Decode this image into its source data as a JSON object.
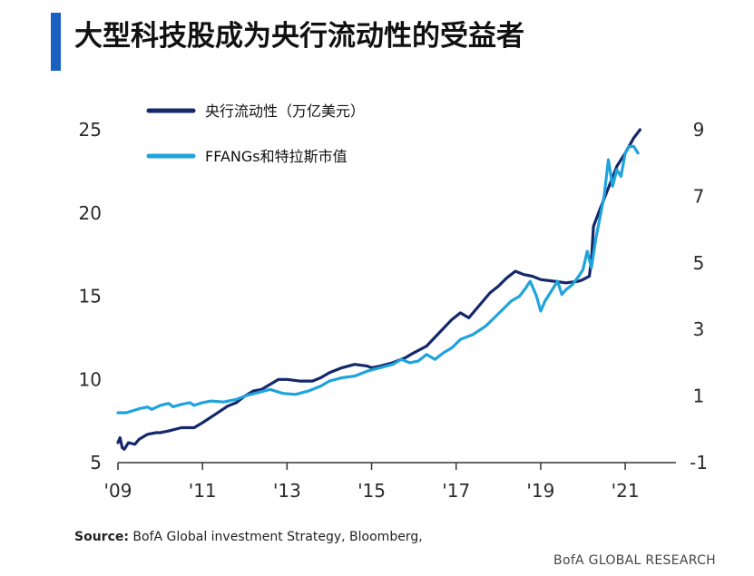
{
  "title": "大型科技股成为央行流动性的受益者",
  "colors": {
    "accent_bar": "#1b5fc1",
    "series_dark": "#14286b",
    "series_light": "#1fa3dd",
    "axis": "#333333"
  },
  "source": {
    "label": "Source:",
    "text": "BofA Global investment Strategy, Bloomberg,"
  },
  "brand": "BofA GLOBAL RESEARCH",
  "chart_data": {
    "type": "line",
    "title": "大型科技股成为央行流动性的受益者",
    "x_ticks": [
      "'09",
      "'11",
      "'13",
      "'15",
      "'17",
      "'19",
      "'21"
    ],
    "xlim": [
      2009,
      2022.2
    ],
    "left_axis": {
      "ticks": [
        "5",
        "10",
        "15",
        "20",
        "25"
      ],
      "ylim": [
        5,
        28
      ]
    },
    "right_axis": {
      "ticks": [
        "-1",
        "1",
        "3",
        "5",
        "7",
        "9"
      ],
      "ylim": [
        -1,
        10.5
      ]
    },
    "legend_position": "top-left",
    "grid": false,
    "series": [
      {
        "name": "央行流动性（万亿美元）",
        "axis": "left",
        "color": "#14286b",
        "points": [
          [
            2009.0,
            6.2
          ],
          [
            2009.05,
            6.5
          ],
          [
            2009.1,
            5.9
          ],
          [
            2009.15,
            5.8
          ],
          [
            2009.25,
            6.2
          ],
          [
            2009.4,
            6.1
          ],
          [
            2009.5,
            6.4
          ],
          [
            2009.7,
            6.7
          ],
          [
            2009.9,
            6.8
          ],
          [
            2010.0,
            6.8
          ],
          [
            2010.2,
            6.9
          ],
          [
            2010.5,
            7.1
          ],
          [
            2010.8,
            7.1
          ],
          [
            2011.0,
            7.4
          ],
          [
            2011.3,
            7.9
          ],
          [
            2011.6,
            8.4
          ],
          [
            2011.8,
            8.6
          ],
          [
            2012.0,
            9.0
          ],
          [
            2012.2,
            9.3
          ],
          [
            2012.4,
            9.4
          ],
          [
            2012.6,
            9.7
          ],
          [
            2012.8,
            10.0
          ],
          [
            2013.0,
            10.0
          ],
          [
            2013.3,
            9.9
          ],
          [
            2013.6,
            9.9
          ],
          [
            2013.8,
            10.1
          ],
          [
            2014.0,
            10.4
          ],
          [
            2014.3,
            10.7
          ],
          [
            2014.6,
            10.9
          ],
          [
            2014.9,
            10.8
          ],
          [
            2015.0,
            10.7
          ],
          [
            2015.2,
            10.8
          ],
          [
            2015.5,
            11.0
          ],
          [
            2015.8,
            11.3
          ],
          [
            2016.0,
            11.6
          ],
          [
            2016.3,
            12.0
          ],
          [
            2016.6,
            12.8
          ],
          [
            2016.9,
            13.6
          ],
          [
            2017.1,
            14.0
          ],
          [
            2017.3,
            13.7
          ],
          [
            2017.5,
            14.3
          ],
          [
            2017.8,
            15.2
          ],
          [
            2018.0,
            15.6
          ],
          [
            2018.2,
            16.1
          ],
          [
            2018.4,
            16.5
          ],
          [
            2018.6,
            16.3
          ],
          [
            2018.8,
            16.2
          ],
          [
            2019.0,
            16.0
          ],
          [
            2019.3,
            15.9
          ],
          [
            2019.6,
            15.8
          ],
          [
            2019.9,
            15.9
          ],
          [
            2020.0,
            16.0
          ],
          [
            2020.15,
            16.2
          ],
          [
            2020.2,
            17.2
          ],
          [
            2020.25,
            19.2
          ],
          [
            2020.4,
            20.2
          ],
          [
            2020.6,
            21.5
          ],
          [
            2020.8,
            22.8
          ],
          [
            2021.0,
            23.6
          ],
          [
            2021.2,
            24.5
          ],
          [
            2021.35,
            25.0
          ]
        ]
      },
      {
        "name": "FFANGs和特拉斯市值",
        "axis": "right",
        "color": "#1fa3dd",
        "points": [
          [
            2009.0,
            0.5
          ],
          [
            2009.2,
            0.5
          ],
          [
            2009.5,
            0.62
          ],
          [
            2009.7,
            0.67
          ],
          [
            2009.8,
            0.6
          ],
          [
            2010.0,
            0.72
          ],
          [
            2010.2,
            0.78
          ],
          [
            2010.3,
            0.68
          ],
          [
            2010.5,
            0.75
          ],
          [
            2010.7,
            0.8
          ],
          [
            2010.8,
            0.72
          ],
          [
            2011.0,
            0.8
          ],
          [
            2011.2,
            0.85
          ],
          [
            2011.5,
            0.82
          ],
          [
            2011.8,
            0.9
          ],
          [
            2012.0,
            1.0
          ],
          [
            2012.3,
            1.1
          ],
          [
            2012.6,
            1.2
          ],
          [
            2012.9,
            1.08
          ],
          [
            2013.2,
            1.05
          ],
          [
            2013.5,
            1.15
          ],
          [
            2013.8,
            1.3
          ],
          [
            2014.0,
            1.45
          ],
          [
            2014.3,
            1.55
          ],
          [
            2014.6,
            1.6
          ],
          [
            2014.9,
            1.75
          ],
          [
            2015.2,
            1.85
          ],
          [
            2015.5,
            1.95
          ],
          [
            2015.7,
            2.1
          ],
          [
            2015.9,
            2.0
          ],
          [
            2016.1,
            2.05
          ],
          [
            2016.3,
            2.25
          ],
          [
            2016.5,
            2.1
          ],
          [
            2016.7,
            2.3
          ],
          [
            2016.9,
            2.45
          ],
          [
            2017.1,
            2.7
          ],
          [
            2017.4,
            2.85
          ],
          [
            2017.7,
            3.1
          ],
          [
            2017.9,
            3.35
          ],
          [
            2018.1,
            3.6
          ],
          [
            2018.3,
            3.85
          ],
          [
            2018.5,
            4.0
          ],
          [
            2018.65,
            4.25
          ],
          [
            2018.75,
            4.45
          ],
          [
            2018.9,
            4.0
          ],
          [
            2019.0,
            3.55
          ],
          [
            2019.1,
            3.85
          ],
          [
            2019.25,
            4.15
          ],
          [
            2019.4,
            4.45
          ],
          [
            2019.5,
            4.05
          ],
          [
            2019.6,
            4.2
          ],
          [
            2019.75,
            4.35
          ],
          [
            2019.9,
            4.6
          ],
          [
            2020.0,
            4.8
          ],
          [
            2020.1,
            5.35
          ],
          [
            2020.2,
            4.85
          ],
          [
            2020.3,
            5.7
          ],
          [
            2020.5,
            7.0
          ],
          [
            2020.6,
            8.1
          ],
          [
            2020.7,
            7.3
          ],
          [
            2020.8,
            7.8
          ],
          [
            2020.9,
            7.6
          ],
          [
            2021.0,
            8.3
          ],
          [
            2021.1,
            8.5
          ],
          [
            2021.2,
            8.5
          ],
          [
            2021.3,
            8.3
          ]
        ]
      }
    ]
  }
}
